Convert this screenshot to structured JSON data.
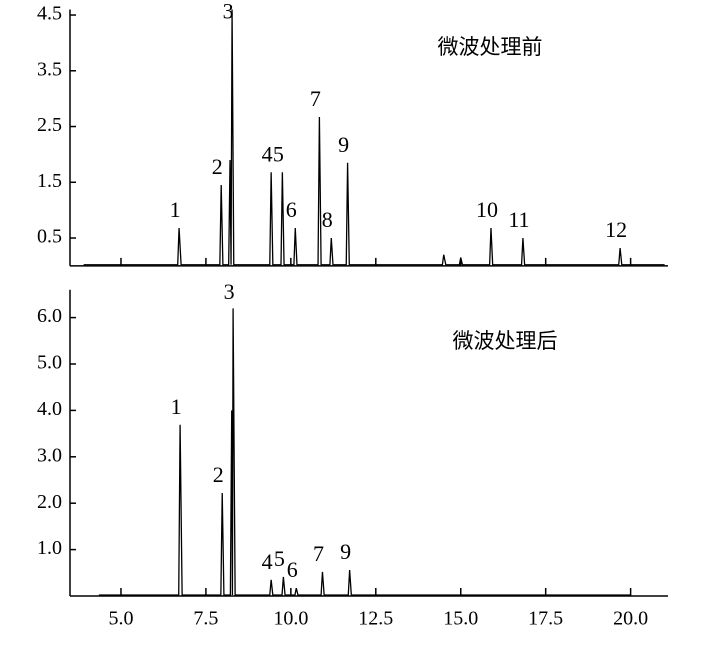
{
  "chart_data": [
    {
      "type": "line",
      "title": "微波处理前",
      "x": [
        3.9,
        6.67,
        6.71,
        6.77,
        7.91,
        7.95,
        8.0,
        8.17,
        8.21,
        8.24,
        8.27,
        8.32,
        9.38,
        9.42,
        9.47,
        9.71,
        9.75,
        9.8,
        10.09,
        10.13,
        10.18,
        10.8,
        10.84,
        10.89,
        11.15,
        11.19,
        11.24,
        11.63,
        11.67,
        11.72,
        14.46,
        14.5,
        14.56,
        14.96,
        15.0,
        15.05,
        15.85,
        15.89,
        15.94,
        16.79,
        16.83,
        16.88,
        19.65,
        19.69,
        19.74,
        21.0
      ],
      "values": [
        0.02,
        0.02,
        0.68,
        0.02,
        0.02,
        1.45,
        0.02,
        0.02,
        1.9,
        0.02,
        4.6,
        0.02,
        0.02,
        1.68,
        0.02,
        0.02,
        1.68,
        0.02,
        0.02,
        0.68,
        0.02,
        0.02,
        2.67,
        0.02,
        0.02,
        0.5,
        0.02,
        0.02,
        1.85,
        0.02,
        0.02,
        0.2,
        0.02,
        0.02,
        0.15,
        0.02,
        0.02,
        0.68,
        0.02,
        0.02,
        0.5,
        0.02,
        0.02,
        0.32,
        0.02,
        0.02
      ],
      "color": "#000000",
      "annotations": [
        {
          "text": "1",
          "x": 6.71,
          "y": 0.68
        },
        {
          "text": "2",
          "x": 7.95,
          "y": 1.45
        },
        {
          "text": "3",
          "x": 8.27,
          "y": 4.6
        },
        {
          "text": "4",
          "x": 9.42,
          "y": 1.68
        },
        {
          "text": "5",
          "x": 9.75,
          "y": 1.68
        },
        {
          "text": "6",
          "x": 10.13,
          "y": 0.68
        },
        {
          "text": "7",
          "x": 10.84,
          "y": 2.67
        },
        {
          "text": "8",
          "x": 11.19,
          "y": 0.5
        },
        {
          "text": "9",
          "x": 11.67,
          "y": 1.85
        },
        {
          "text": "10",
          "x": 15.89,
          "y": 0.68
        },
        {
          "text": "11",
          "x": 16.83,
          "y": 0.5
        },
        {
          "text": "12",
          "x": 19.69,
          "y": 0.32
        }
      ],
      "xlim": [
        3.5,
        21.1
      ],
      "xticks": [
        5,
        7.5,
        10,
        12.5,
        15,
        17.5,
        20
      ],
      "ylim": [
        0,
        4.6
      ],
      "yticks": [
        0.5,
        1.5,
        2.5,
        3.5,
        4.5
      ]
    },
    {
      "type": "line",
      "title": "微波处理后",
      "x": [
        4.35,
        6.7,
        6.74,
        6.8,
        7.94,
        7.98,
        8.03,
        8.22,
        8.26,
        8.28,
        8.3,
        8.36,
        9.38,
        9.42,
        9.47,
        9.74,
        9.78,
        9.83,
        10.12,
        10.16,
        10.21,
        10.89,
        10.93,
        10.98,
        11.69,
        11.73,
        11.78,
        20.0
      ],
      "values": [
        0.02,
        0.02,
        3.69,
        0.02,
        0.02,
        2.22,
        0.02,
        0.02,
        4.0,
        0.02,
        6.2,
        0.02,
        0.02,
        0.35,
        0.02,
        0.02,
        0.41,
        0.02,
        0.02,
        0.17,
        0.02,
        0.02,
        0.52,
        0.02,
        0.02,
        0.56,
        0.02,
        0.02
      ],
      "color": "#000000",
      "annotations": [
        {
          "text": "1",
          "x": 6.74,
          "y": 3.69
        },
        {
          "text": "2",
          "x": 7.98,
          "y": 2.22
        },
        {
          "text": "3",
          "x": 8.3,
          "y": 6.2
        },
        {
          "text": "4",
          "x": 9.42,
          "y": 0.35
        },
        {
          "text": "5",
          "x": 9.78,
          "y": 0.41
        },
        {
          "text": "6",
          "x": 10.16,
          "y": 0.17
        },
        {
          "text": "7",
          "x": 10.93,
          "y": 0.52
        },
        {
          "text": "9",
          "x": 11.73,
          "y": 0.56
        }
      ],
      "xlim": [
        3.5,
        21.1
      ],
      "xticks": [
        {
          "value": 5,
          "label": "5.0"
        },
        {
          "value": 7.5,
          "label": "7.5"
        },
        {
          "value": 10,
          "label": "10.0"
        },
        {
          "value": 12.5,
          "label": "12.5"
        },
        {
          "value": 15,
          "label": "15.0"
        },
        {
          "value": 17.5,
          "label": "17.5"
        },
        {
          "value": 20,
          "label": "20.0"
        }
      ],
      "ylim": [
        0,
        6.6
      ],
      "yticks": [
        {
          "value": 1,
          "label": "1.0"
        },
        {
          "value": 2,
          "label": "2.0"
        },
        {
          "value": 3,
          "label": "3.0"
        },
        {
          "value": 4,
          "label": "4.0"
        },
        {
          "value": 5,
          "label": "5.0"
        },
        {
          "value": 6,
          "label": "6.0"
        }
      ]
    }
  ]
}
